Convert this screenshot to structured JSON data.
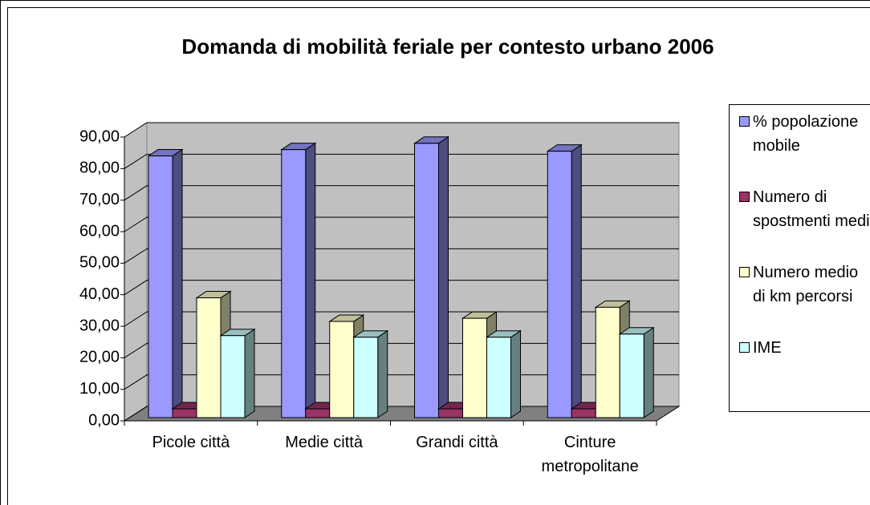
{
  "chart_data": {
    "type": "bar3d",
    "title": "Domanda di mobilità feriale per contesto urbano 2006",
    "categories": [
      "Picole città",
      "Medie città",
      "Grandi città",
      "Cinture metropolitane"
    ],
    "series": [
      {
        "name": "% popolazione mobile",
        "color": "#9999ff",
        "values": [
          83,
          85,
          87,
          84.5
        ]
      },
      {
        "name": "Numero di spostmenti medi",
        "color": "#993366",
        "values": [
          2.8,
          2.8,
          2.8,
          2.8
        ]
      },
      {
        "name": "Numero medio di km percorsi",
        "color": "#ffffcc",
        "values": [
          38,
          30.5,
          31.5,
          35
        ]
      },
      {
        "name": "IME",
        "color": "#ccffff",
        "values": [
          26,
          25.5,
          25.5,
          26.5
        ]
      }
    ],
    "ylim": [
      0,
      90
    ],
    "yticks": [
      {
        "value": 0,
        "label": "0,00"
      },
      {
        "value": 10,
        "label": "10,00"
      },
      {
        "value": 20,
        "label": "20,00"
      },
      {
        "value": 30,
        "label": "30,00"
      },
      {
        "value": 40,
        "label": "40,00"
      },
      {
        "value": 50,
        "label": "50,00"
      },
      {
        "value": 60,
        "label": "60,00"
      },
      {
        "value": 70,
        "label": "70,00"
      },
      {
        "value": 80,
        "label": "80,00"
      },
      {
        "value": 90,
        "label": "90,00"
      }
    ],
    "grid": true,
    "legend": "right"
  }
}
